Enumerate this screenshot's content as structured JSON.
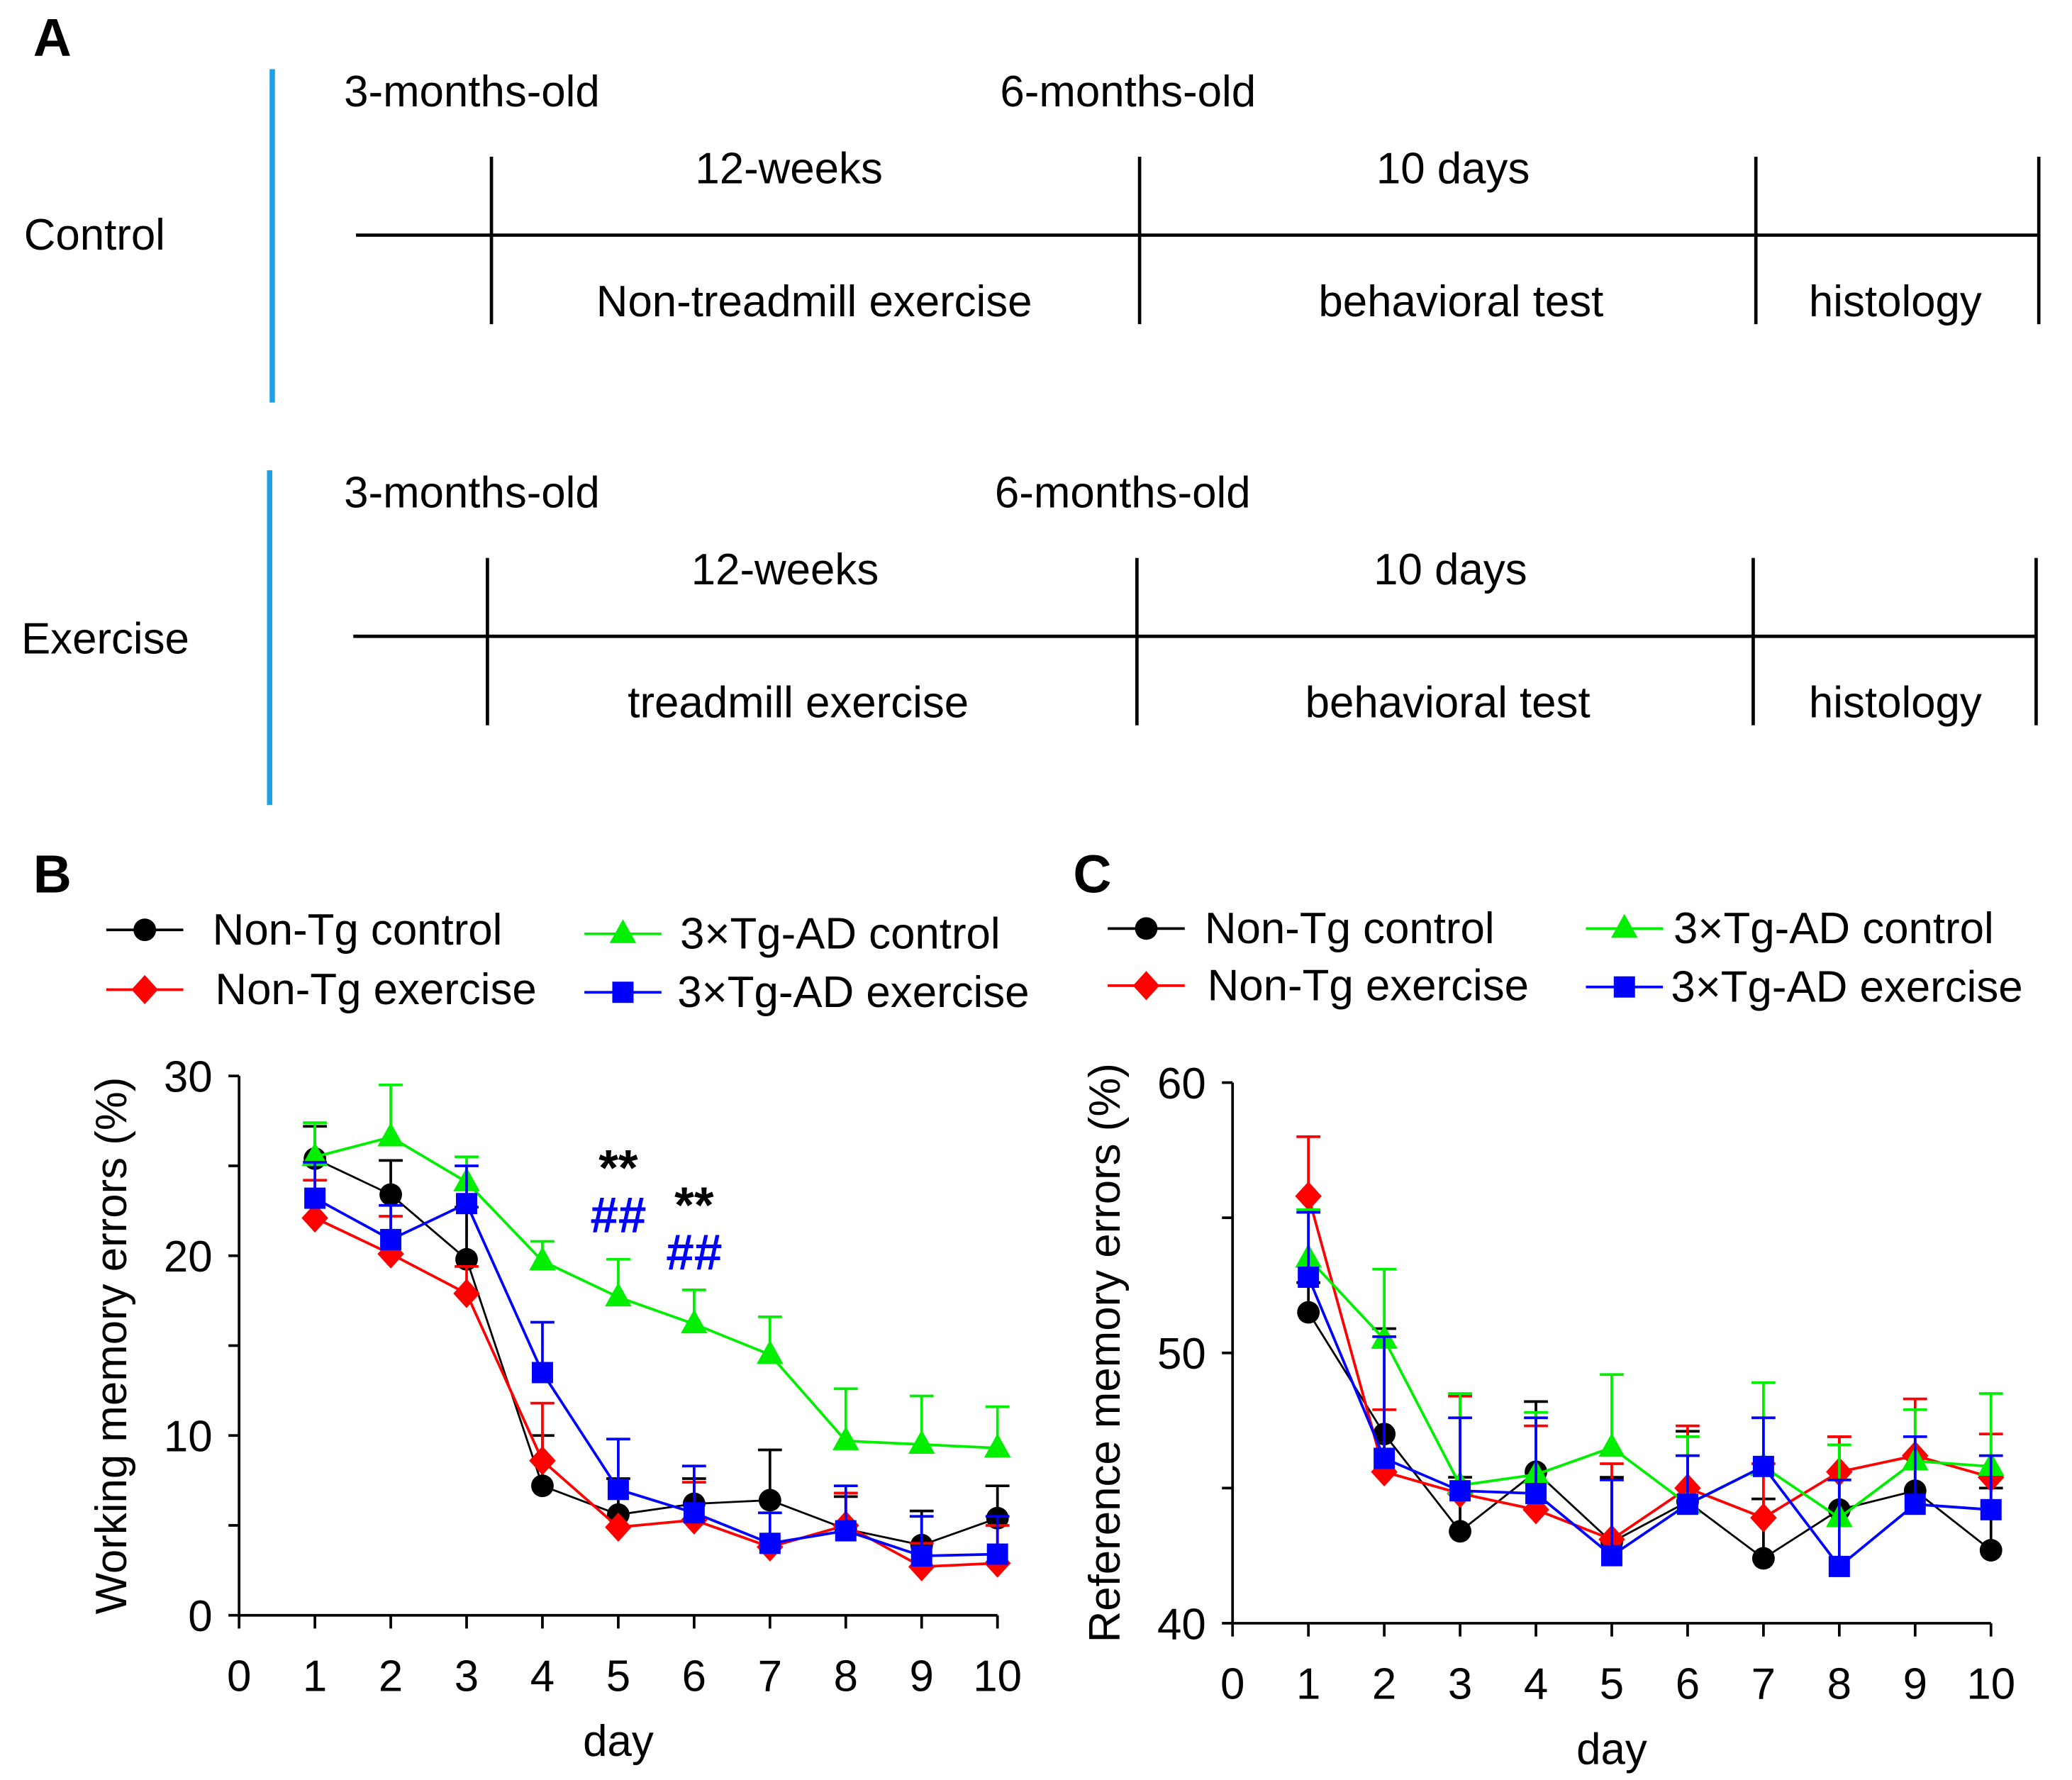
{
  "panel_labels": {
    "a": "A",
    "b": "B",
    "c": "C"
  },
  "schematic": {
    "groups": [
      {
        "name": "Control",
        "age_start": "3-months-old",
        "age_end": "6-months-old",
        "period1": "12-weeks",
        "period2": "10 days",
        "stage1": "Non-treadmill exercise",
        "stage2": "behavioral test",
        "stage3": "histology"
      },
      {
        "name": "Exercise",
        "age_start": "3-months-old",
        "age_end": "6-months-old",
        "period1": "12-weeks",
        "period2": "10 days",
        "stage1": "treadmill exercise",
        "stage2": "behavioral test",
        "stage3": "histology"
      }
    ],
    "bar_color": "#1ea0e6"
  },
  "chart_data": [
    {
      "type": "line",
      "xlabel": "day",
      "ylabel": "Working memory errors (%)",
      "xlim": [
        0,
        10
      ],
      "ylim": [
        0,
        30
      ],
      "x_ticks": [
        "0",
        "1",
        "2",
        "3",
        "4",
        "5",
        "6",
        "7",
        "8",
        "9",
        "10"
      ],
      "y_ticks": [
        "0",
        "10",
        "20",
        "30"
      ],
      "legend_placement": "top",
      "x": [
        1,
        2,
        3,
        4,
        5,
        6,
        7,
        8,
        9,
        10
      ],
      "series": [
        {
          "name": "Non-Tg control",
          "color": "#000000",
          "marker": "circle",
          "values": [
            25.4,
            23.4,
            19.8,
            7.2,
            5.6,
            6.2,
            6.4,
            4.8,
            3.9,
            5.4
          ],
          "error_upper": [
            27.2,
            25.3,
            22.7,
            10.0,
            7.6,
            7.6,
            9.2,
            6.6,
            5.8,
            7.2
          ]
        },
        {
          "name": "Non-Tg exercise",
          "color": "#ff0000",
          "marker": "diamond",
          "values": [
            22.1,
            20.1,
            17.9,
            8.6,
            4.9,
            5.3,
            3.8,
            5.0,
            2.7,
            2.9
          ],
          "error_upper": [
            24.2,
            22.2,
            19.4,
            11.8,
            4.9,
            7.4,
            3.8,
            6.8,
            4.0,
            5.0
          ]
        },
        {
          "name": "3×Tg-AD control",
          "color": "#00ee00",
          "marker": "triangle",
          "values": [
            25.5,
            26.6,
            24.1,
            19.7,
            17.7,
            16.2,
            14.5,
            9.7,
            9.5,
            9.3
          ],
          "error_upper": [
            27.4,
            29.5,
            25.5,
            20.8,
            19.8,
            18.1,
            16.6,
            12.6,
            12.2,
            11.6
          ]
        },
        {
          "name": "3×Tg-AD exercise",
          "color": "#0000ff",
          "marker": "square",
          "values": [
            23.2,
            20.9,
            22.9,
            13.5,
            7.0,
            5.7,
            4.0,
            4.7,
            3.3,
            3.4
          ],
          "error_upper": [
            25.2,
            22.8,
            25.0,
            16.3,
            9.8,
            8.3,
            5.7,
            7.2,
            5.5,
            5.5
          ]
        }
      ],
      "annotations": [
        {
          "text": "**",
          "day": 5,
          "color": "#000000"
        },
        {
          "text": "##",
          "day": 5,
          "color": "#0000ff"
        },
        {
          "text": "**",
          "day": 6,
          "color": "#000000"
        },
        {
          "text": "##",
          "day": 6,
          "color": "#0000ff"
        }
      ]
    },
    {
      "type": "line",
      "xlabel": "day",
      "ylabel": "Reference memory errors (%)",
      "xlim": [
        0,
        10
      ],
      "ylim": [
        40,
        60
      ],
      "x_ticks": [
        "0",
        "1",
        "2",
        "3",
        "4",
        "5",
        "6",
        "7",
        "8",
        "9",
        "10"
      ],
      "y_ticks": [
        "40",
        "50",
        "60"
      ],
      "legend_placement": "top",
      "x": [
        1,
        2,
        3,
        4,
        5,
        6,
        7,
        8,
        9,
        10
      ],
      "series": [
        {
          "name": "Non-Tg control",
          "color": "#000000",
          "marker": "circle",
          "values": [
            51.5,
            47.0,
            43.4,
            45.6,
            43.0,
            44.5,
            42.4,
            44.2,
            44.9,
            42.7
          ],
          "error_upper": [
            52.6,
            50.9,
            45.4,
            48.2,
            45.4,
            47.1,
            44.6,
            46.9,
            46.1,
            45.0
          ]
        },
        {
          "name": "Non-Tg exercise",
          "color": "#ff0000",
          "marker": "diamond",
          "values": [
            55.8,
            45.6,
            44.8,
            44.2,
            43.1,
            45.0,
            43.9,
            45.6,
            46.2,
            45.4
          ],
          "error_upper": [
            58.0,
            47.9,
            48.4,
            47.3,
            45.9,
            47.3,
            45.9,
            46.9,
            48.3,
            47.0
          ]
        },
        {
          "name": "3×Tg-AD control",
          "color": "#00ee00",
          "marker": "triangle",
          "values": [
            53.5,
            50.5,
            45.1,
            45.5,
            46.5,
            44.4,
            45.8,
            43.9,
            46.0,
            45.8
          ],
          "error_upper": [
            55.3,
            53.1,
            48.5,
            47.8,
            49.2,
            46.9,
            48.9,
            46.6,
            47.9,
            48.5
          ]
        },
        {
          "name": "3×Tg-AD exercise",
          "color": "#0000ff",
          "marker": "square",
          "values": [
            52.8,
            46.1,
            44.9,
            44.8,
            42.5,
            44.4,
            45.8,
            42.1,
            44.4,
            44.2
          ],
          "error_upper": [
            55.2,
            50.6,
            47.6,
            47.6,
            45.3,
            46.2,
            47.6,
            45.3,
            46.9,
            46.2
          ]
        }
      ]
    }
  ]
}
